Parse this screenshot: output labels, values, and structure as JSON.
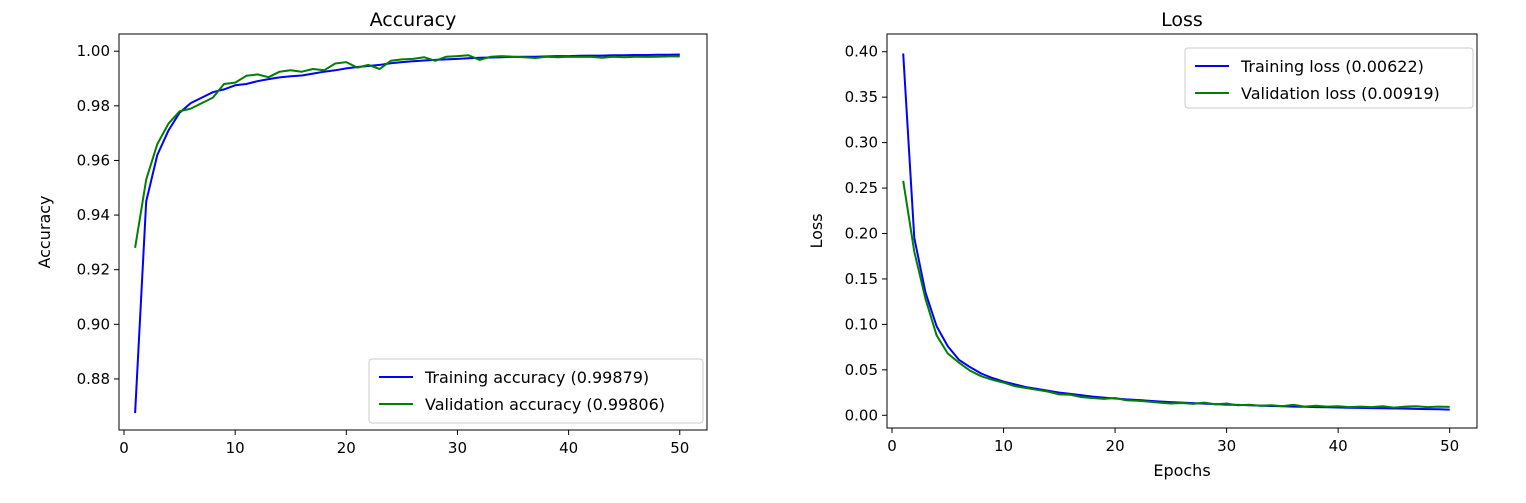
{
  "chart_data": [
    {
      "type": "line",
      "title": "Accuracy",
      "xlabel": "",
      "ylabel": "Accuracy",
      "xlim": [
        -0.45,
        52.45
      ],
      "ylim": [
        0.8613,
        1.0063
      ],
      "xticks": [
        0,
        10,
        20,
        30,
        40,
        50
      ],
      "yticks": [
        0.88,
        0.9,
        0.92,
        0.94,
        0.96,
        0.98,
        1.0
      ],
      "ytick_labels": [
        "0.88",
        "0.90",
        "0.92",
        "0.94",
        "0.96",
        "0.98",
        "1.00"
      ],
      "grid": false,
      "legend_position": "lower-right",
      "series": [
        {
          "name": "Training accuracy (0.99879)",
          "color": "#0000ff",
          "x": [
            1,
            2,
            3,
            4,
            5,
            6,
            7,
            8,
            9,
            10,
            11,
            12,
            13,
            14,
            15,
            16,
            17,
            18,
            19,
            20,
            21,
            22,
            23,
            24,
            25,
            26,
            27,
            28,
            29,
            30,
            31,
            32,
            33,
            34,
            35,
            36,
            37,
            38,
            39,
            40,
            41,
            42,
            43,
            44,
            45,
            46,
            47,
            48,
            49,
            50
          ],
          "values": [
            0.8675,
            0.945,
            0.962,
            0.971,
            0.9775,
            0.981,
            0.983,
            0.985,
            0.986,
            0.9875,
            0.988,
            0.989,
            0.9898,
            0.9904,
            0.9908,
            0.9911,
            0.9918,
            0.9925,
            0.993,
            0.9937,
            0.9942,
            0.9946,
            0.995,
            0.9956,
            0.996,
            0.9963,
            0.9966,
            0.9968,
            0.997,
            0.9972,
            0.9974,
            0.9976,
            0.9977,
            0.9978,
            0.9979,
            0.998,
            0.998,
            0.9981,
            0.9982,
            0.9982,
            0.9983,
            0.9984,
            0.9984,
            0.9985,
            0.9985,
            0.9986,
            0.9986,
            0.9987,
            0.9987,
            0.9988
          ]
        },
        {
          "name": "Validation accuracy (0.99806)",
          "color": "#008000",
          "x": [
            1,
            2,
            3,
            4,
            5,
            6,
            7,
            8,
            9,
            10,
            11,
            12,
            13,
            14,
            15,
            16,
            17,
            18,
            19,
            20,
            21,
            22,
            23,
            24,
            25,
            26,
            27,
            28,
            29,
            30,
            31,
            32,
            33,
            34,
            35,
            36,
            37,
            38,
            39,
            40,
            41,
            42,
            43,
            44,
            45,
            46,
            47,
            48,
            49,
            50
          ],
          "values": [
            0.928,
            0.953,
            0.966,
            0.9735,
            0.978,
            0.979,
            0.981,
            0.983,
            0.988,
            0.9885,
            0.991,
            0.9915,
            0.9905,
            0.9925,
            0.993,
            0.9925,
            0.9935,
            0.993,
            0.9955,
            0.996,
            0.994,
            0.995,
            0.9935,
            0.9965,
            0.997,
            0.9972,
            0.9978,
            0.9965,
            0.998,
            0.9982,
            0.9985,
            0.9968,
            0.998,
            0.9982,
            0.998,
            0.9978,
            0.9975,
            0.998,
            0.9978,
            0.998,
            0.9979,
            0.998,
            0.9976,
            0.998,
            0.9978,
            0.998,
            0.9979,
            0.998,
            0.9981,
            0.9981
          ]
        }
      ]
    },
    {
      "type": "line",
      "title": "Loss",
      "xlabel": "Epochs",
      "ylabel": "Loss",
      "xlim": [
        -0.45,
        52.45
      ],
      "ylim": [
        -0.014,
        0.4195
      ],
      "xticks": [
        0,
        10,
        20,
        30,
        40,
        50
      ],
      "yticks": [
        0.0,
        0.05,
        0.1,
        0.15,
        0.2,
        0.25,
        0.3,
        0.35,
        0.4
      ],
      "ytick_labels": [
        "0.00",
        "0.05",
        "0.10",
        "0.15",
        "0.20",
        "0.25",
        "0.30",
        "0.35",
        "0.40"
      ],
      "grid": false,
      "legend_position": "upper-right",
      "series": [
        {
          "name": "Training loss (0.00622)",
          "color": "#0000ff",
          "x": [
            1,
            2,
            3,
            4,
            5,
            6,
            7,
            8,
            9,
            10,
            11,
            12,
            13,
            14,
            15,
            16,
            17,
            18,
            19,
            20,
            21,
            22,
            23,
            24,
            25,
            26,
            27,
            28,
            29,
            30,
            31,
            32,
            33,
            34,
            35,
            36,
            37,
            38,
            39,
            40,
            41,
            42,
            43,
            44,
            45,
            46,
            47,
            48,
            49,
            50
          ],
          "values": [
            0.398,
            0.195,
            0.135,
            0.098,
            0.076,
            0.061,
            0.053,
            0.046,
            0.041,
            0.037,
            0.034,
            0.031,
            0.029,
            0.027,
            0.025,
            0.0235,
            0.022,
            0.0205,
            0.0195,
            0.0185,
            0.0175,
            0.0168,
            0.016,
            0.0152,
            0.0145,
            0.014,
            0.0134,
            0.0128,
            0.0123,
            0.0118,
            0.0114,
            0.011,
            0.0106,
            0.0102,
            0.0099,
            0.0096,
            0.0093,
            0.009,
            0.0088,
            0.0086,
            0.0083,
            0.0081,
            0.0079,
            0.0077,
            0.0075,
            0.0073,
            0.007,
            0.0068,
            0.0066,
            0.0062
          ]
        },
        {
          "name": "Validation loss (0.00919)",
          "color": "#008000",
          "x": [
            1,
            2,
            3,
            4,
            5,
            6,
            7,
            8,
            9,
            10,
            11,
            12,
            13,
            14,
            15,
            16,
            17,
            18,
            19,
            20,
            21,
            22,
            23,
            24,
            25,
            26,
            27,
            28,
            29,
            30,
            31,
            32,
            33,
            34,
            35,
            36,
            37,
            38,
            39,
            40,
            41,
            42,
            43,
            44,
            45,
            46,
            47,
            48,
            49,
            50
          ],
          "values": [
            0.258,
            0.18,
            0.128,
            0.088,
            0.068,
            0.058,
            0.049,
            0.043,
            0.039,
            0.036,
            0.032,
            0.03,
            0.028,
            0.026,
            0.023,
            0.0225,
            0.02,
            0.019,
            0.018,
            0.019,
            0.0165,
            0.016,
            0.015,
            0.014,
            0.013,
            0.0135,
            0.0125,
            0.014,
            0.012,
            0.013,
            0.011,
            0.0115,
            0.0105,
            0.011,
            0.01,
            0.0115,
            0.0095,
            0.0105,
            0.0095,
            0.01,
            0.009,
            0.0095,
            0.009,
            0.01,
            0.0085,
            0.0095,
            0.01,
            0.009,
            0.0095,
            0.0092
          ]
        }
      ]
    }
  ]
}
